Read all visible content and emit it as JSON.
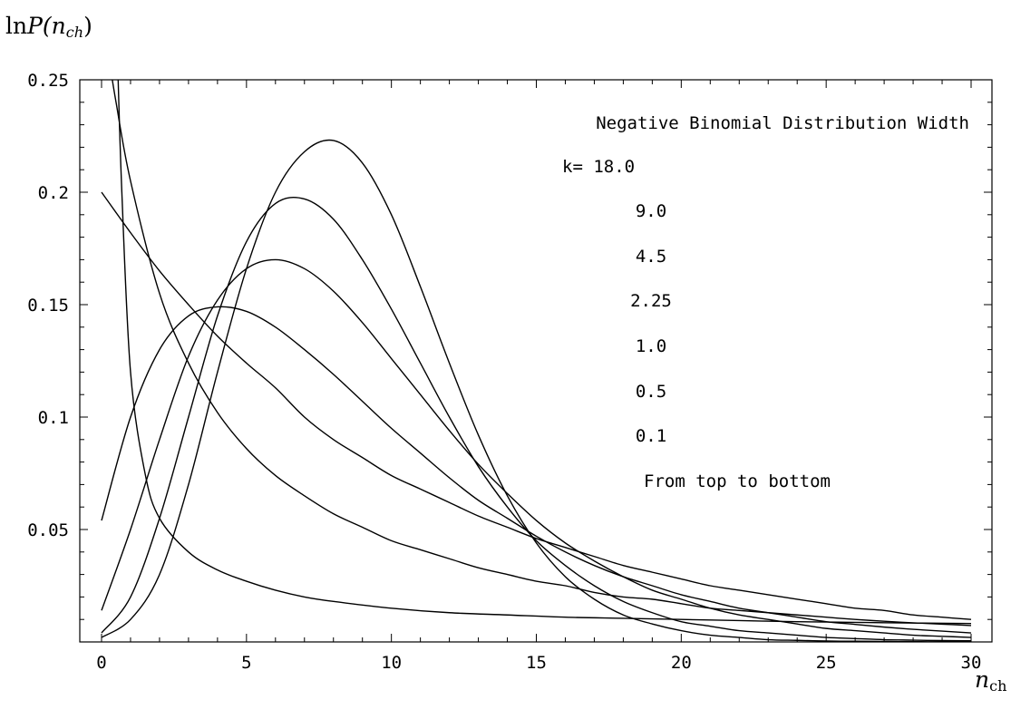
{
  "chart_data": {
    "type": "line",
    "title": "",
    "ylabel": {
      "prefix": "ln",
      "main": "P(n",
      "sub": "ch",
      "suffix": ")"
    },
    "xlabel": {
      "main": "n",
      "sub": "ch"
    },
    "xlim": [
      0,
      30
    ],
    "ylim": [
      0,
      0.25
    ],
    "xticks": [
      0,
      5,
      10,
      15,
      20,
      25,
      30
    ],
    "xtick_labels": [
      "0",
      "5",
      "10",
      "15",
      "20",
      "25",
      "30"
    ],
    "yticks": [
      0.05,
      0.1,
      0.15,
      0.2,
      0.25
    ],
    "ytick_labels": [
      "0.05",
      "0.1",
      "0.15",
      "0.2",
      "0.25"
    ],
    "grid": false,
    "annotations": [
      "Negative Binomial Distribution Width",
      "k= 18.0",
      "9.0",
      "4.5",
      "2.25",
      "1.0",
      "0.5",
      "0.1",
      "From top to bottom"
    ],
    "series": [
      {
        "k": 18.0,
        "x": [
          0,
          1,
          2,
          3,
          4,
          5,
          6,
          7,
          8,
          9,
          10,
          11,
          12,
          13,
          14,
          15,
          16,
          17,
          18,
          19,
          20,
          21,
          22,
          23,
          24,
          25,
          26,
          27,
          28,
          29,
          30
        ],
        "values": [
          0.002,
          0.01,
          0.03,
          0.07,
          0.12,
          0.166,
          0.2,
          0.218,
          0.223,
          0.213,
          0.19,
          0.158,
          0.124,
          0.092,
          0.065,
          0.044,
          0.029,
          0.019,
          0.012,
          0.008,
          0.005,
          0.003,
          0.002,
          0.001,
          0.0007,
          0.0004,
          0.0003,
          0.0002,
          0.0001,
          0.0001,
          0.0001
        ]
      },
      {
        "k": 9.0,
        "x": [
          0,
          1,
          2,
          3,
          4,
          5,
          6,
          7,
          8,
          9,
          10,
          11,
          12,
          13,
          14,
          15,
          16,
          17,
          18,
          19,
          20,
          21,
          22,
          23,
          24,
          25,
          26,
          27,
          28,
          29,
          30
        ],
        "values": [
          0.004,
          0.02,
          0.055,
          0.1,
          0.145,
          0.178,
          0.195,
          0.197,
          0.188,
          0.17,
          0.148,
          0.124,
          0.1,
          0.078,
          0.06,
          0.045,
          0.034,
          0.025,
          0.018,
          0.013,
          0.009,
          0.007,
          0.005,
          0.004,
          0.003,
          0.002,
          0.0015,
          0.001,
          0.0008,
          0.0006,
          0.0005
        ]
      },
      {
        "k": 4.5,
        "x": [
          0,
          1,
          2,
          3,
          4,
          5,
          6,
          7,
          8,
          9,
          10,
          11,
          12,
          13,
          14,
          15,
          16,
          17,
          18,
          19,
          20,
          21,
          22,
          23,
          24,
          25,
          26,
          27,
          28,
          29,
          30
        ],
        "values": [
          0.014,
          0.05,
          0.09,
          0.127,
          0.152,
          0.166,
          0.17,
          0.166,
          0.156,
          0.142,
          0.126,
          0.11,
          0.094,
          0.079,
          0.066,
          0.054,
          0.044,
          0.036,
          0.029,
          0.023,
          0.019,
          0.015,
          0.012,
          0.01,
          0.008,
          0.006,
          0.005,
          0.004,
          0.003,
          0.0025,
          0.002
        ]
      },
      {
        "k": 2.25,
        "x": [
          0,
          1,
          2,
          3,
          4,
          5,
          6,
          7,
          8,
          9,
          10,
          11,
          12,
          13,
          14,
          15,
          16,
          17,
          18,
          19,
          20,
          21,
          22,
          23,
          24,
          25,
          26,
          27,
          28,
          29,
          30
        ],
        "values": [
          0.054,
          0.1,
          0.13,
          0.145,
          0.149,
          0.147,
          0.14,
          0.13,
          0.119,
          0.107,
          0.095,
          0.084,
          0.073,
          0.063,
          0.055,
          0.047,
          0.04,
          0.034,
          0.029,
          0.025,
          0.021,
          0.018,
          0.015,
          0.013,
          0.011,
          0.009,
          0.0078,
          0.0066,
          0.0056,
          0.0048,
          0.004
        ]
      },
      {
        "k": 1.0,
        "x": [
          0,
          1,
          2,
          3,
          4,
          5,
          6,
          7,
          8,
          9,
          10,
          11,
          12,
          13,
          14,
          15,
          16,
          17,
          18,
          19,
          20,
          21,
          22,
          23,
          24,
          25,
          26,
          27,
          28,
          29,
          30
        ],
        "values": [
          0.2,
          0.182,
          0.165,
          0.15,
          0.136,
          0.124,
          0.113,
          0.1,
          0.09,
          0.082,
          0.074,
          0.068,
          0.062,
          0.056,
          0.051,
          0.046,
          0.042,
          0.038,
          0.034,
          0.031,
          0.028,
          0.025,
          0.023,
          0.021,
          0.019,
          0.017,
          0.015,
          0.014,
          0.012,
          0.011,
          0.01
        ]
      },
      {
        "k": 0.5,
        "x": [
          0.25,
          0.5,
          1,
          2,
          3,
          4,
          5,
          6,
          7,
          8,
          9,
          10,
          11,
          12,
          13,
          14,
          15,
          16,
          17,
          18,
          19,
          20,
          21,
          22,
          23,
          24,
          25,
          26,
          27,
          28,
          29,
          30
        ],
        "values": [
          0.26,
          0.24,
          0.205,
          0.155,
          0.124,
          0.102,
          0.086,
          0.074,
          0.065,
          0.057,
          0.051,
          0.045,
          0.041,
          0.037,
          0.033,
          0.03,
          0.027,
          0.025,
          0.022,
          0.02,
          0.019,
          0.017,
          0.015,
          0.014,
          0.013,
          0.012,
          0.011,
          0.01,
          0.0092,
          0.0085,
          0.0079,
          0.0073
        ]
      },
      {
        "k": 0.1,
        "x": [
          0.55,
          0.7,
          1,
          1.5,
          2,
          3,
          4,
          5,
          6,
          7,
          8,
          10,
          12,
          14,
          16,
          18,
          20,
          22,
          24,
          26,
          28,
          30
        ],
        "values": [
          0.26,
          0.2,
          0.12,
          0.075,
          0.055,
          0.04,
          0.032,
          0.027,
          0.023,
          0.02,
          0.018,
          0.015,
          0.013,
          0.012,
          0.011,
          0.0105,
          0.01,
          0.0095,
          0.009,
          0.0087,
          0.0084,
          0.0082
        ]
      }
    ]
  }
}
